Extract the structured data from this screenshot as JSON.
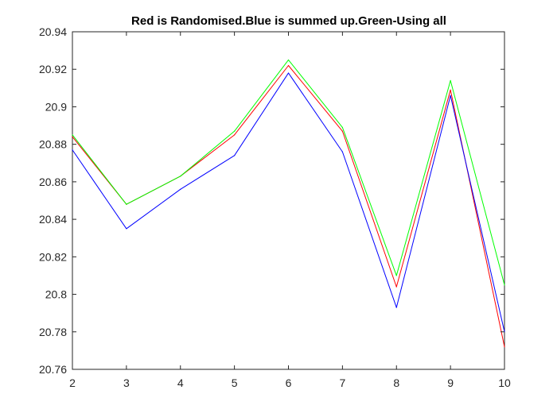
{
  "chart_data": {
    "type": "line",
    "title": "Red is Randomised.Blue is summed up.Green-Using all",
    "xlabel": "",
    "ylabel": "",
    "x": [
      2,
      3,
      4,
      5,
      6,
      7,
      8,
      9,
      10
    ],
    "xlim": [
      2,
      10
    ],
    "ylim": [
      20.76,
      20.94
    ],
    "xticks": [
      2,
      3,
      4,
      5,
      6,
      7,
      8,
      9,
      10
    ],
    "yticks": [
      20.76,
      20.78,
      20.8,
      20.82,
      20.84,
      20.86,
      20.88,
      20.9,
      20.92,
      20.94
    ],
    "ytick_labels": [
      "20.76",
      "20.78",
      "20.8",
      "20.82",
      "20.84",
      "20.86",
      "20.88",
      "20.9",
      "20.92",
      "20.94"
    ],
    "grid": false,
    "legend": "none",
    "series": [
      {
        "color": "#ff0000",
        "values": [
          20.884,
          20.848,
          20.863,
          20.885,
          20.922,
          20.887,
          20.804,
          20.909,
          20.772
        ]
      },
      {
        "color": "#0000ff",
        "values": [
          20.877,
          20.835,
          20.856,
          20.874,
          20.918,
          20.876,
          20.793,
          20.906,
          20.78
        ]
      },
      {
        "color": "#00ff00",
        "values": [
          20.885,
          20.848,
          20.863,
          20.887,
          20.925,
          20.889,
          20.81,
          20.914,
          20.805
        ]
      }
    ]
  }
}
